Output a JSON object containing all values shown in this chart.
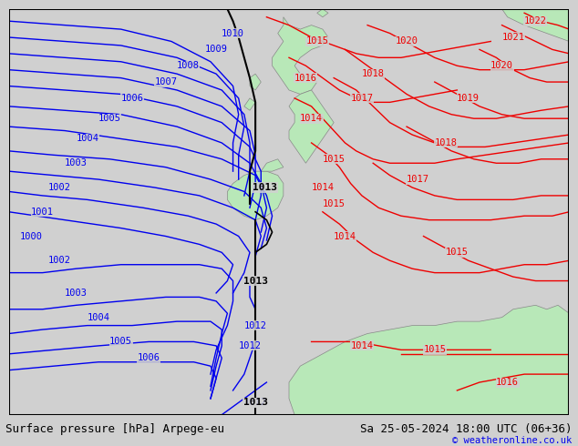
{
  "title_left": "Surface pressure [hPa] Arpege-eu",
  "title_right": "Sa 25-05-2024 18:00 UTC (06+36)",
  "copyright": "© weatheronline.co.uk",
  "bg_color": "#d0d0d0",
  "land_color": "#b8e8b8",
  "border_color": "#888888",
  "blue_color": "#0000ee",
  "red_color": "#ee0000",
  "black_color": "#000000",
  "label_fs": 7.5,
  "footer_fs": 9,
  "copy_fs": 7.5
}
